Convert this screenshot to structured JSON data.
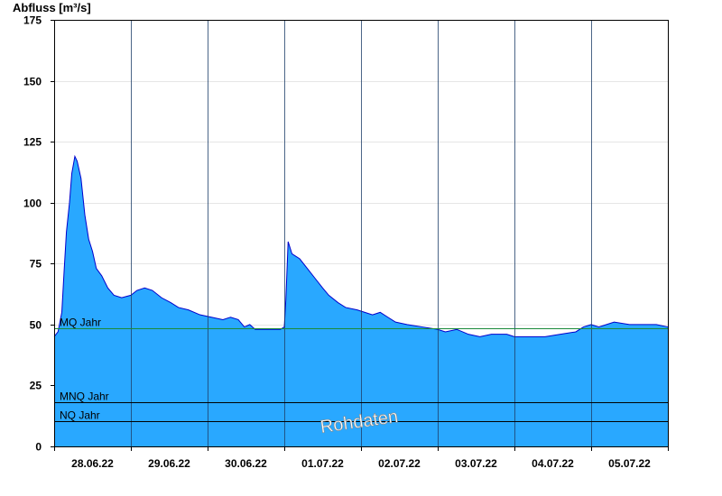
{
  "chart_data": {
    "type": "area",
    "ylabel": "Abfluss [m³/s]",
    "ylim": [
      0,
      175
    ],
    "yticks": [
      0,
      25,
      50,
      75,
      100,
      125,
      150,
      175
    ],
    "x_range": [
      0,
      8
    ],
    "x_tick_labels": [
      "28.06.22",
      "29.06.22",
      "30.06.22",
      "01.07.22",
      "02.07.22",
      "03.07.22",
      "04.07.22",
      "05.07.22"
    ],
    "grid": true,
    "colors": {
      "fill": "#29a8ff",
      "line": "#0000cc",
      "mq": "#1a8a3a",
      "ref": "#000000"
    },
    "reference_lines": [
      {
        "label": "MQ Jahr",
        "value": 48.5
      },
      {
        "label": "MNQ Jahr",
        "value": 18
      },
      {
        "label": "NQ Jahr",
        "value": 10.5
      }
    ],
    "watermark": "Rohdaten",
    "series": [
      {
        "values": [
          [
            0.0,
            45
          ],
          [
            0.05,
            47
          ],
          [
            0.1,
            55
          ],
          [
            0.13,
            72
          ],
          [
            0.16,
            88
          ],
          [
            0.2,
            100
          ],
          [
            0.23,
            112
          ],
          [
            0.27,
            119
          ],
          [
            0.3,
            117
          ],
          [
            0.35,
            110
          ],
          [
            0.4,
            95
          ],
          [
            0.45,
            85
          ],
          [
            0.5,
            80
          ],
          [
            0.55,
            73
          ],
          [
            0.62,
            70
          ],
          [
            0.7,
            65
          ],
          [
            0.78,
            62
          ],
          [
            0.88,
            61
          ],
          [
            1.0,
            62
          ],
          [
            1.08,
            64
          ],
          [
            1.18,
            65
          ],
          [
            1.28,
            64
          ],
          [
            1.4,
            61
          ],
          [
            1.52,
            59
          ],
          [
            1.62,
            57
          ],
          [
            1.75,
            56
          ],
          [
            1.9,
            54
          ],
          [
            2.05,
            53
          ],
          [
            2.2,
            52
          ],
          [
            2.3,
            53
          ],
          [
            2.4,
            52
          ],
          [
            2.48,
            49
          ],
          [
            2.55,
            50
          ],
          [
            2.62,
            48
          ],
          [
            2.75,
            48
          ],
          [
            2.95,
            48
          ],
          [
            3.0,
            49
          ],
          [
            3.02,
            60
          ],
          [
            3.05,
            84
          ],
          [
            3.1,
            79
          ],
          [
            3.15,
            78
          ],
          [
            3.2,
            77
          ],
          [
            3.3,
            73
          ],
          [
            3.4,
            69
          ],
          [
            3.5,
            65
          ],
          [
            3.58,
            62
          ],
          [
            3.7,
            59
          ],
          [
            3.8,
            57
          ],
          [
            3.95,
            56
          ],
          [
            4.05,
            55
          ],
          [
            4.15,
            54
          ],
          [
            4.25,
            55
          ],
          [
            4.35,
            53
          ],
          [
            4.45,
            51
          ],
          [
            4.6,
            50
          ],
          [
            4.8,
            49
          ],
          [
            5.0,
            48
          ],
          [
            5.1,
            47
          ],
          [
            5.25,
            48
          ],
          [
            5.4,
            46
          ],
          [
            5.55,
            45
          ],
          [
            5.7,
            46
          ],
          [
            5.9,
            46
          ],
          [
            6.0,
            45
          ],
          [
            6.2,
            45
          ],
          [
            6.4,
            45
          ],
          [
            6.6,
            46
          ],
          [
            6.8,
            47
          ],
          [
            6.9,
            49
          ],
          [
            7.0,
            50
          ],
          [
            7.1,
            49
          ],
          [
            7.2,
            50
          ],
          [
            7.3,
            51
          ],
          [
            7.5,
            50
          ],
          [
            7.7,
            50
          ],
          [
            7.85,
            50
          ],
          [
            8.0,
            49
          ]
        ]
      }
    ]
  }
}
